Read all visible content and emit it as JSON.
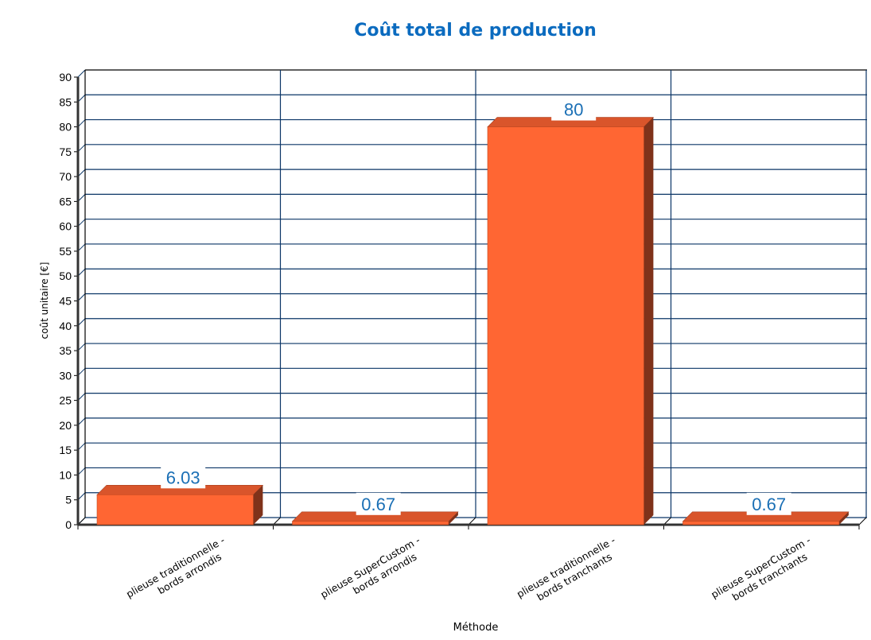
{
  "chart_data": {
    "type": "bar",
    "title": "Coût total de production",
    "xlabel": "Méthode",
    "ylabel": "coût unitaire [€]",
    "categories": [
      "plieuse traditionnelle - bords arrondis",
      "plieuse SuperCustom - bords arrondis",
      "plieuse traditionnelle - bords tranchants",
      "plieuse SuperCustom - bords tranchants"
    ],
    "category_lines": [
      [
        "plieuse traditionnelle -",
        "bords arrondis"
      ],
      [
        "plieuse SuperCustom -",
        "bords arrondis"
      ],
      [
        "plieuse traditionnelle -",
        "bords tranchants"
      ],
      [
        "plieuse SuperCustom -",
        "bords tranchants"
      ]
    ],
    "values": [
      6.03,
      0.67,
      80,
      0.67
    ],
    "data_labels": [
      "6.03",
      "0.67",
      "80",
      "0.67"
    ],
    "ylim": [
      0,
      90
    ],
    "yticks": [
      0,
      5,
      10,
      15,
      20,
      25,
      30,
      35,
      40,
      45,
      50,
      55,
      60,
      65,
      70,
      75,
      80,
      85,
      90
    ],
    "grid": true,
    "style": "3d",
    "colors": {
      "bar_front": "#ff6633",
      "bar_top": "#d9552b",
      "bar_side": "#7f321a",
      "grid": "#0a3566",
      "title": "#0b6bbf",
      "data_label": "#1a6fb5"
    }
  }
}
